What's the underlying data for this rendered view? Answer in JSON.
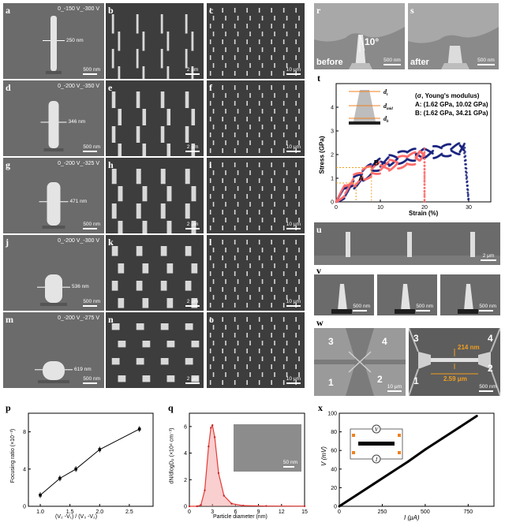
{
  "panels": {
    "a": {
      "label": "a",
      "cond": "0_-150 V_-300 V",
      "meas": "250 nm",
      "scale": "500 nm"
    },
    "b": {
      "label": "b",
      "scale": "2 μm"
    },
    "c": {
      "label": "c",
      "scale": "10 μm"
    },
    "d": {
      "label": "d",
      "cond": "0_-200 V_-350 V",
      "meas": "346 nm",
      "scale": "500 nm"
    },
    "e": {
      "label": "e",
      "scale": "2 μm"
    },
    "f": {
      "label": "f",
      "scale": "10 μm"
    },
    "g": {
      "label": "g",
      "cond": "0_-200 V_-325 V",
      "meas": "471 nm",
      "scale": "500 nm"
    },
    "h": {
      "label": "h",
      "scale": "2 μm"
    },
    "i": {
      "label": "i",
      "scale": "10 μm"
    },
    "j": {
      "label": "j",
      "cond": "0_-200 V_-300 V",
      "meas": "536 nm",
      "scale": "500 nm"
    },
    "k": {
      "label": "k",
      "scale": "2 μm"
    },
    "l": {
      "label": "l",
      "scale": "10 μm"
    },
    "m": {
      "label": "m",
      "cond": "0_-200 V_-275 V",
      "meas": "619 nm",
      "scale": "500 nm"
    },
    "n": {
      "label": "n",
      "scale": "2 μm"
    },
    "o": {
      "label": "o",
      "scale": "10 μm"
    },
    "r": {
      "label": "r",
      "caption": "before",
      "angle": "10°",
      "scale": "500 nm"
    },
    "s": {
      "label": "s",
      "caption": "after",
      "scale": "500 nm"
    },
    "u": {
      "label": "u",
      "scale": "2 μm"
    },
    "v": {
      "label": "v",
      "scales": [
        "500 nm",
        "500 nm",
        "500 nm"
      ]
    },
    "w": {
      "label": "w",
      "left_electrodes": [
        "3",
        "4",
        "1",
        "2"
      ],
      "left_scale": "10 μm",
      "right_electrodes": [
        "3",
        "4",
        "1",
        "2"
      ],
      "width": "214 nm",
      "length": "2.59 μm",
      "right_scale": "500 nm"
    }
  },
  "chart_data": [
    {
      "id": "t",
      "label": "t",
      "type": "scatter",
      "xlabel": "Strain (%)",
      "ylabel": "Stress (GPa)",
      "xlim": [
        0,
        35
      ],
      "ylim": [
        0,
        5
      ],
      "xticks": [
        "0",
        "10",
        "20",
        "30"
      ],
      "yticks": [
        "0",
        "1",
        "2",
        "3",
        "4"
      ],
      "legend_title": "(σ, Young's modulus)",
      "legend": [
        "A: (1.62 GPa, 10.02 GPa)",
        "B: (1.62 GPa, 34.21 GPa)"
      ],
      "inset_labels": [
        "d",
        "d",
        "d"
      ],
      "inset_subscripts": [
        "t",
        "mid",
        "b"
      ],
      "points": [
        "A",
        "B"
      ],
      "series": [
        {
          "name": "A",
          "color": "#1a237e",
          "x": [
            0,
            2,
            4,
            6,
            8,
            10,
            12,
            14,
            16,
            18,
            20,
            22,
            24,
            26,
            28,
            29,
            30
          ],
          "y": [
            0,
            0.4,
            0.8,
            1.1,
            1.4,
            1.6,
            1.75,
            1.85,
            1.95,
            2.0,
            2.05,
            2.1,
            2.15,
            2.2,
            2.25,
            2.3,
            0.0
          ]
        },
        {
          "name": "B",
          "color": "#ff6b6b",
          "x": [
            0,
            2,
            4,
            6,
            8,
            10,
            12,
            14,
            16,
            18,
            19,
            20,
            20
          ],
          "y": [
            0,
            0.5,
            0.9,
            1.15,
            1.3,
            1.45,
            1.55,
            1.65,
            1.75,
            1.85,
            1.95,
            2.0,
            0.0
          ]
        }
      ]
    },
    {
      "id": "p",
      "label": "p",
      "type": "line",
      "xlabel": "(V₂ -V₁) / (V₃ -V₂)",
      "ylabel": "Focusing ratio (×10⁻³)",
      "xlim": [
        0.8,
        2.9
      ],
      "ylim": [
        0,
        10
      ],
      "xticks": [
        "1.0",
        "1.5",
        "2.0",
        "2.5"
      ],
      "yticks": [
        "0",
        "4",
        "8"
      ],
      "x": [
        1.0,
        1.33,
        1.6,
        2.0,
        2.67
      ],
      "y": [
        1.2,
        3.0,
        4.0,
        6.1,
        8.3
      ]
    },
    {
      "id": "q",
      "label": "q",
      "type": "line",
      "xlabel": "Particle diameter (nm)",
      "ylabel": "dN/dlogDₚ (×10⁴ cm⁻³)",
      "xlim": [
        0,
        15
      ],
      "ylim": [
        0,
        7
      ],
      "xticks": [
        "0",
        "3",
        "6",
        "9",
        "12",
        "15"
      ],
      "yticks": [
        "0",
        "2",
        "4",
        "6"
      ],
      "inset_scale": "50 nm",
      "x": [
        0,
        1,
        1.5,
        2,
        2.5,
        2.8,
        3.0,
        3.3,
        3.8,
        4.5,
        5.5,
        7,
        10,
        15
      ],
      "y": [
        0,
        0,
        0.1,
        1.2,
        4.5,
        5.9,
        6.1,
        5.2,
        2.5,
        0.8,
        0.2,
        0.05,
        0.02,
        0.01
      ]
    },
    {
      "id": "x",
      "label": "x",
      "type": "line",
      "xlabel": "I (μA)",
      "ylabel": "V (mV)",
      "xlim": [
        0,
        900
      ],
      "ylim": [
        0,
        100
      ],
      "xticks": [
        "0",
        "250",
        "500",
        "750"
      ],
      "yticks": [
        "0",
        "20",
        "40",
        "60",
        "80",
        "100"
      ],
      "inset_symbols": [
        "V",
        "I"
      ],
      "x": [
        0,
        100,
        200,
        300,
        400,
        500,
        600,
        700,
        800
      ],
      "y": [
        0,
        12,
        24,
        36,
        48,
        61,
        73,
        85,
        97
      ]
    }
  ]
}
